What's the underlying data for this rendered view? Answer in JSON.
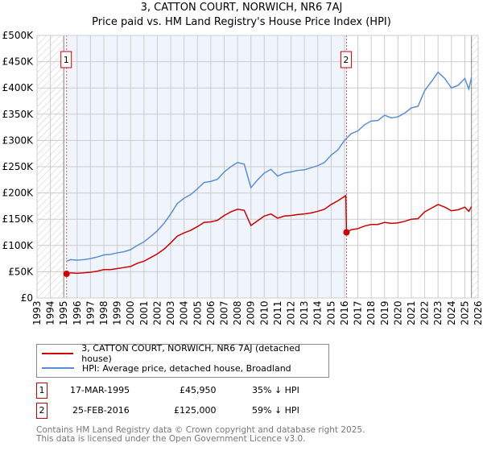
{
  "chart_data": {
    "type": "line",
    "title": "3, CATTON COURT, NORWICH, NR6 7AJ",
    "subtitle": "Price paid vs. HM Land Registry's House Price Index (HPI)",
    "xlim": [
      1993,
      2026
    ],
    "ylim": [
      0,
      500000
    ],
    "x_ticks": [
      "1993",
      "1994",
      "1995",
      "1996",
      "1997",
      "1998",
      "1999",
      "2000",
      "2001",
      "2002",
      "2003",
      "2004",
      "2005",
      "2006",
      "2007",
      "2008",
      "2009",
      "2010",
      "2011",
      "2012",
      "2013",
      "2014",
      "2015",
      "2016",
      "2017",
      "2018",
      "2019",
      "2020",
      "2021",
      "2022",
      "2023",
      "2024",
      "2025",
      "2026"
    ],
    "y_ticks": [
      "£0",
      "£50K",
      "£100K",
      "£150K",
      "£200K",
      "£250K",
      "£300K",
      "£350K",
      "£400K",
      "£450K",
      "£500K"
    ],
    "grid": true,
    "series": [
      {
        "name": "3, CATTON COURT, NORWICH, NR6 7AJ (detached house)",
        "color": "#cc0000",
        "x": [
          1995.2,
          1995.5,
          1996,
          1996.5,
          1997,
          1997.5,
          1998,
          1998.5,
          1999,
          1999.5,
          2000,
          2000.5,
          2001,
          2001.5,
          2002,
          2002.5,
          2003,
          2003.5,
          2004,
          2004.5,
          2005,
          2005.5,
          2006,
          2006.5,
          2007,
          2007.5,
          2008,
          2008.5,
          2009,
          2009.5,
          2010,
          2010.5,
          2011,
          2011.5,
          2012,
          2012.5,
          2013,
          2013.5,
          2014,
          2014.5,
          2015,
          2015.5,
          2016.1,
          2016.15,
          2016.5,
          2017,
          2017.5,
          2018,
          2018.5,
          2019,
          2019.5,
          2020,
          2020.5,
          2021,
          2021.5,
          2022,
          2022.5,
          2023,
          2023.5,
          2024,
          2024.5,
          2025,
          2025.3,
          2025.5
        ],
        "y": [
          46,
          48,
          47,
          48,
          49,
          51,
          54,
          54,
          56,
          58,
          60,
          66,
          70,
          77,
          84,
          93,
          105,
          118,
          124,
          129,
          136,
          144,
          145,
          148,
          157,
          164,
          169,
          167,
          138,
          147,
          156,
          160,
          152,
          156,
          157,
          159,
          160,
          162,
          165,
          169,
          178,
          185,
          195,
          125,
          130,
          132,
          137,
          140,
          140,
          144,
          142,
          143,
          146,
          150,
          151,
          164,
          171,
          178,
          173,
          166,
          168,
          173,
          165,
          174
        ]
      },
      {
        "name": "HPI: Average price, detached house, Broadland",
        "color": "#5b8fd4",
        "x": [
          1995.2,
          1995.5,
          1996,
          1996.5,
          1997,
          1997.5,
          1998,
          1998.5,
          1999,
          1999.5,
          2000,
          2000.5,
          2001,
          2001.5,
          2002,
          2002.5,
          2003,
          2003.5,
          2004,
          2004.5,
          2005,
          2005.5,
          2006,
          2006.5,
          2007,
          2007.5,
          2008,
          2008.5,
          2009,
          2009.5,
          2010,
          2010.5,
          2011,
          2011.5,
          2012,
          2012.5,
          2013,
          2013.5,
          2014,
          2014.5,
          2015,
          2015.5,
          2016,
          2016.5,
          2017,
          2017.5,
          2018,
          2018.5,
          2019,
          2019.5,
          2020,
          2020.5,
          2021,
          2021.5,
          2022,
          2022.5,
          2023,
          2023.5,
          2024,
          2024.5,
          2025,
          2025.3,
          2025.5
        ],
        "y": [
          70,
          73,
          72,
          73,
          75,
          78,
          82,
          83,
          86,
          88,
          92,
          100,
          107,
          117,
          128,
          142,
          160,
          180,
          190,
          197,
          208,
          220,
          222,
          226,
          240,
          250,
          258,
          255,
          210,
          225,
          238,
          245,
          232,
          238,
          240,
          243,
          244,
          248,
          252,
          258,
          272,
          282,
          300,
          313,
          318,
          330,
          337,
          338,
          348,
          343,
          345,
          352,
          362,
          365,
          395,
          412,
          430,
          418,
          400,
          405,
          418,
          398,
          420
        ]
      }
    ],
    "y_unit": "thousand GBP",
    "sales": [
      {
        "label": "1",
        "x": 2016.15,
        "x1": 1995.21,
        "price": 45950
      }
    ],
    "markers": [
      {
        "label": "1",
        "x": 1995.21,
        "y": 45.95
      },
      {
        "label": "2",
        "x": 2016.15,
        "y": 125
      }
    ],
    "shaded_range": [
      1995.21,
      2016.15
    ],
    "hatched_before": 1995,
    "hatched_after": 2025.5
  },
  "legend": {
    "red": "3, CATTON COURT, NORWICH, NR6 7AJ (detached house)",
    "blue": "HPI: Average price, detached house, Broadland"
  },
  "transactions": [
    {
      "n": "1",
      "date": "17-MAR-1995",
      "price": "£45,950",
      "hpi": "35% ↓ HPI"
    },
    {
      "n": "2",
      "date": "25-FEB-2016",
      "price": "£125,000",
      "hpi": "59% ↓ HPI"
    }
  ],
  "footer": {
    "line1": "Contains HM Land Registry data © Crown copyright and database right 2025.",
    "line2": "This data is licensed under the Open Government Licence v3.0."
  }
}
